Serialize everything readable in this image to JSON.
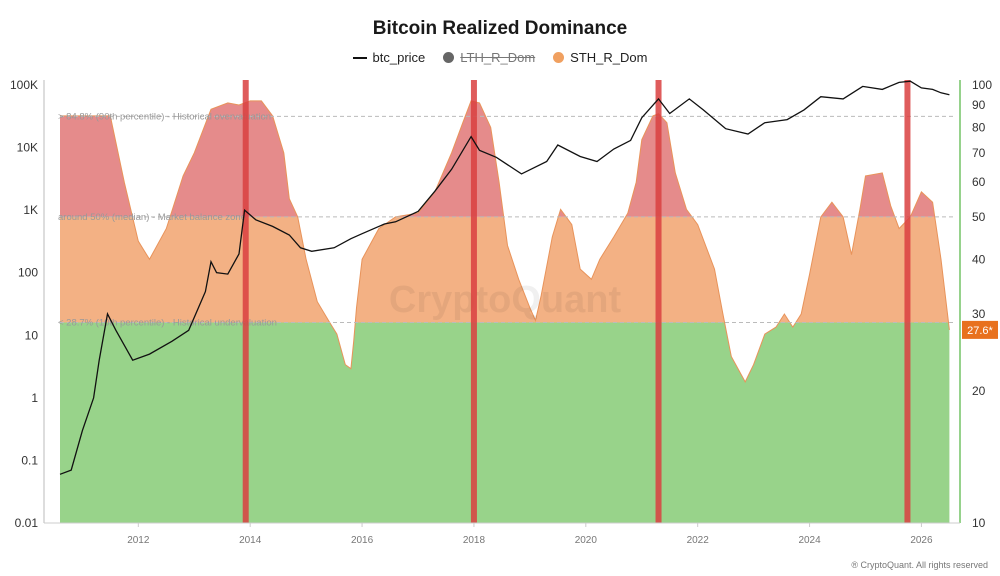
{
  "title": "Bitcoin Realized Dominance",
  "legend": [
    {
      "label": "btc_price",
      "type": "line",
      "color": "#111111",
      "enabled": true
    },
    {
      "label": "LTH_R_Dom",
      "type": "dot",
      "color": "#666666",
      "enabled": false
    },
    {
      "label": "STH_R_Dom",
      "type": "dot",
      "color": "#f0a060",
      "enabled": true
    }
  ],
  "watermark": "CryptoQuant",
  "footer": "® CryptoQuant. All rights reserved",
  "current_value_label": "27.6*",
  "chart_data": {
    "type": "area",
    "x_ticks": [
      "2012",
      "2014",
      "2016",
      "2018",
      "2020",
      "2022",
      "2024",
      "2026"
    ],
    "left_axis": {
      "scale": "log",
      "ticks": [
        "0.01",
        "0.1",
        "1",
        "10",
        "100",
        "1K",
        "10K",
        "100K"
      ],
      "range": [
        0.01,
        100000
      ]
    },
    "right_axis": {
      "scale": "log",
      "ticks": [
        "10",
        "20",
        "30",
        "40",
        "50",
        "60",
        "70",
        "80",
        "90",
        "100"
      ],
      "range": [
        10,
        100
      ]
    },
    "zones": [
      {
        "label": "> 84.8% (90th percentile) - Historical overvaluation",
        "value": 84.8
      },
      {
        "label": "around 50% (median) - Market balance zone",
        "value": 50
      },
      {
        "label": "< 28.7% (10th percentile) - Historical undervaluation",
        "value": 28.7
      }
    ],
    "highlight_dates": [
      2013.92,
      2018.0,
      2021.3,
      2025.75
    ],
    "series": [
      {
        "name": "STH_R_Dom",
        "axis": "right",
        "points": [
          [
            2010.6,
            85
          ],
          [
            2011.5,
            85
          ],
          [
            2011.75,
            60
          ],
          [
            2012.0,
            44
          ],
          [
            2012.2,
            40
          ],
          [
            2012.5,
            47
          ],
          [
            2012.8,
            62
          ],
          [
            2013.0,
            70
          ],
          [
            2013.3,
            88
          ],
          [
            2013.6,
            91
          ],
          [
            2013.8,
            90
          ],
          [
            2014.0,
            92
          ],
          [
            2014.2,
            92
          ],
          [
            2014.4,
            85
          ],
          [
            2014.6,
            70
          ],
          [
            2014.7,
            55
          ],
          [
            2014.85,
            50
          ],
          [
            2015.0,
            40
          ],
          [
            2015.2,
            32
          ],
          [
            2015.4,
            29
          ],
          [
            2015.55,
            27
          ],
          [
            2015.7,
            23
          ],
          [
            2015.8,
            22.5
          ],
          [
            2015.85,
            26
          ],
          [
            2015.9,
            31
          ],
          [
            2016.0,
            40
          ],
          [
            2016.3,
            47
          ],
          [
            2016.6,
            50
          ],
          [
            2017.0,
            51
          ],
          [
            2017.3,
            57
          ],
          [
            2017.6,
            70
          ],
          [
            2017.8,
            82
          ],
          [
            2017.95,
            92
          ],
          [
            2018.1,
            91
          ],
          [
            2018.3,
            80
          ],
          [
            2018.45,
            60
          ],
          [
            2018.6,
            43
          ],
          [
            2018.8,
            36
          ],
          [
            2019.0,
            31
          ],
          [
            2019.1,
            29
          ],
          [
            2019.2,
            33
          ],
          [
            2019.4,
            45
          ],
          [
            2019.55,
            52
          ],
          [
            2019.75,
            48
          ],
          [
            2019.9,
            38
          ],
          [
            2020.1,
            36
          ],
          [
            2020.25,
            40
          ],
          [
            2020.5,
            45
          ],
          [
            2020.75,
            51
          ],
          [
            2020.9,
            60
          ],
          [
            2021.0,
            75
          ],
          [
            2021.2,
            85
          ],
          [
            2021.3,
            86
          ],
          [
            2021.45,
            82
          ],
          [
            2021.6,
            63
          ],
          [
            2021.8,
            52
          ],
          [
            2022.0,
            48
          ],
          [
            2022.3,
            38
          ],
          [
            2022.45,
            30
          ],
          [
            2022.6,
            24
          ],
          [
            2022.85,
            21
          ],
          [
            2023.0,
            23
          ],
          [
            2023.2,
            27
          ],
          [
            2023.4,
            28
          ],
          [
            2023.55,
            30
          ],
          [
            2023.7,
            28
          ],
          [
            2023.85,
            30
          ],
          [
            2024.0,
            37
          ],
          [
            2024.2,
            50
          ],
          [
            2024.4,
            54
          ],
          [
            2024.6,
            50
          ],
          [
            2024.75,
            41
          ],
          [
            2024.9,
            52
          ],
          [
            2025.0,
            62
          ],
          [
            2025.3,
            63
          ],
          [
            2025.45,
            53
          ],
          [
            2025.6,
            47
          ],
          [
            2025.8,
            50
          ],
          [
            2026.0,
            57
          ],
          [
            2026.2,
            54
          ],
          [
            2026.35,
            40
          ],
          [
            2026.5,
            27.6
          ]
        ]
      },
      {
        "name": "btc_price",
        "axis": "left",
        "points": [
          [
            2010.6,
            0.06
          ],
          [
            2010.8,
            0.07
          ],
          [
            2011.0,
            0.3
          ],
          [
            2011.2,
            1
          ],
          [
            2011.3,
            4
          ],
          [
            2011.45,
            22
          ],
          [
            2011.6,
            12
          ],
          [
            2011.9,
            4
          ],
          [
            2012.2,
            5
          ],
          [
            2012.6,
            8
          ],
          [
            2012.9,
            12
          ],
          [
            2013.2,
            50
          ],
          [
            2013.3,
            150
          ],
          [
            2013.4,
            100
          ],
          [
            2013.6,
            95
          ],
          [
            2013.8,
            200
          ],
          [
            2013.9,
            1000
          ],
          [
            2014.1,
            700
          ],
          [
            2014.4,
            550
          ],
          [
            2014.7,
            400
          ],
          [
            2014.9,
            250
          ],
          [
            2015.1,
            220
          ],
          [
            2015.5,
            250
          ],
          [
            2015.8,
            350
          ],
          [
            2016.0,
            420
          ],
          [
            2016.4,
            600
          ],
          [
            2016.6,
            650
          ],
          [
            2017.0,
            950
          ],
          [
            2017.3,
            2000
          ],
          [
            2017.6,
            4500
          ],
          [
            2017.95,
            15000
          ],
          [
            2018.1,
            9000
          ],
          [
            2018.4,
            7000
          ],
          [
            2018.85,
            3800
          ],
          [
            2019.3,
            6000
          ],
          [
            2019.5,
            11000
          ],
          [
            2019.9,
            7200
          ],
          [
            2020.2,
            6000
          ],
          [
            2020.5,
            9500
          ],
          [
            2020.8,
            13000
          ],
          [
            2021.0,
            30000
          ],
          [
            2021.3,
            60000
          ],
          [
            2021.5,
            35000
          ],
          [
            2021.85,
            60000
          ],
          [
            2022.1,
            40000
          ],
          [
            2022.5,
            20000
          ],
          [
            2022.9,
            16500
          ],
          [
            2023.2,
            25000
          ],
          [
            2023.6,
            28000
          ],
          [
            2023.9,
            40000
          ],
          [
            2024.2,
            65000
          ],
          [
            2024.6,
            60000
          ],
          [
            2024.95,
            95000
          ],
          [
            2025.3,
            85000
          ],
          [
            2025.6,
            110000
          ],
          [
            2025.8,
            115000
          ],
          [
            2026.0,
            90000
          ],
          [
            2026.2,
            85000
          ],
          [
            2026.35,
            75000
          ],
          [
            2026.5,
            70000
          ]
        ]
      }
    ]
  }
}
